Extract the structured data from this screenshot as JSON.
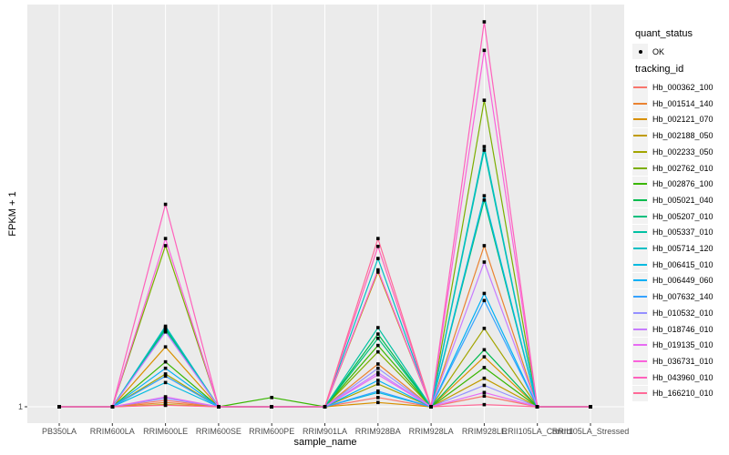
{
  "figure": {
    "background": "#FFFFFF",
    "panel_background": "#EBEBEB",
    "gridline_color": "#FFFFFF",
    "point_color": "#000000",
    "tick_color": "#333333",
    "axis_text_color": "#4D4D4D"
  },
  "legend": {
    "quant_status_title": "quant_status",
    "quant_status_item": "OK",
    "tracking_id_title": "tracking_id"
  },
  "chart_data": {
    "type": "line",
    "title": "",
    "xlabel": "sample_name",
    "ylabel": "FPKM + 1",
    "legend_position": "right",
    "grid": "vertical major gridlines per sample, horizontal gridline at y=1",
    "y_axis": {
      "tick_labels": [
        "1"
      ],
      "baseline_value": 1,
      "max_value": 55,
      "scale": "linear"
    },
    "quant_status": "OK",
    "categories": [
      "PB350LA",
      "RRIM600LA",
      "RRIM600LE",
      "RRIM600SE",
      "RRIM600PE",
      "RRIM901LA",
      "RRIM928BA",
      "RRIM928LA",
      "RRIM928LE",
      "RRII105LA_Control",
      "RRII105LA_Stressed"
    ],
    "series": [
      {
        "name": "Hb_000362_100",
        "color": "#F8766D",
        "values": [
          1,
          1,
          1.9,
          1,
          1,
          1,
          2.3,
          1,
          2.5,
          1,
          1
        ]
      },
      {
        "name": "Hb_001514_140",
        "color": "#EA8331",
        "values": [
          1,
          1,
          1.6,
          1,
          1,
          1,
          7.0,
          1,
          23.6,
          1,
          1
        ]
      },
      {
        "name": "Hb_002121_070",
        "color": "#D89000",
        "values": [
          1,
          1,
          9.4,
          1,
          1,
          1,
          1.6,
          1,
          8.0,
          1,
          1
        ]
      },
      {
        "name": "Hb_002188_050",
        "color": "#C09B00",
        "values": [
          1,
          1,
          1.3,
          1,
          1,
          1,
          19.9,
          1,
          5.0,
          1,
          1
        ]
      },
      {
        "name": "Hb_002233_050",
        "color": "#A3A500",
        "values": [
          1,
          1,
          5.6,
          1,
          1,
          1,
          4.2,
          1,
          12.0,
          1,
          1
        ]
      },
      {
        "name": "Hb_002762_010",
        "color": "#7CAE00",
        "values": [
          1,
          1,
          23.6,
          1,
          1,
          1,
          8.7,
          1,
          44.0,
          1,
          1
        ]
      },
      {
        "name": "Hb_002876_100",
        "color": "#39B600",
        "values": [
          1,
          1,
          7.3,
          1,
          2.3,
          1,
          9.6,
          1,
          6.5,
          1,
          1
        ]
      },
      {
        "name": "Hb_005021_040",
        "color": "#00BB4E",
        "values": [
          1,
          1,
          11.9,
          1,
          1,
          1,
          11.2,
          1,
          9.0,
          1,
          1
        ]
      },
      {
        "name": "Hb_005207_010",
        "color": "#00BF7D",
        "values": [
          1,
          1,
          12.1,
          1,
          1,
          1,
          10.6,
          1,
          30.0,
          1,
          1
        ]
      },
      {
        "name": "Hb_005337_010",
        "color": "#00C1A3",
        "values": [
          1,
          1,
          11.7,
          1,
          1,
          1,
          12.1,
          1,
          37.0,
          1,
          1
        ]
      },
      {
        "name": "Hb_005714_120",
        "color": "#00BFC4",
        "values": [
          1,
          1,
          12.3,
          1,
          1,
          1,
          21.8,
          1,
          37.5,
          1,
          1
        ]
      },
      {
        "name": "Hb_006415_010",
        "color": "#00BAE0",
        "values": [
          1,
          1,
          4.4,
          1,
          1,
          1,
          3.0,
          1,
          30.6,
          1,
          1
        ]
      },
      {
        "name": "Hb_006449_060",
        "color": "#00B0F6",
        "values": [
          1,
          1,
          6.4,
          1,
          1,
          1,
          4.7,
          1,
          16.9,
          1,
          1
        ]
      },
      {
        "name": "Hb_007632_140",
        "color": "#35A2FF",
        "values": [
          1,
          1,
          5.3,
          1,
          1,
          1,
          3.2,
          1,
          15.9,
          1,
          1
        ]
      },
      {
        "name": "Hb_010532_010",
        "color": "#9590FF",
        "values": [
          1,
          1,
          2.2,
          1,
          1,
          1,
          6.4,
          1,
          4.0,
          1,
          1
        ]
      },
      {
        "name": "Hb_018746_010",
        "color": "#C77CFF",
        "values": [
          1,
          1,
          11.5,
          1,
          1,
          1,
          5.8,
          1,
          21.3,
          1,
          1
        ]
      },
      {
        "name": "Hb_019135_010",
        "color": "#E76BF3",
        "values": [
          1,
          1,
          2.4,
          1,
          1,
          1,
          5.5,
          1,
          3.0,
          1,
          1
        ]
      },
      {
        "name": "Hb_036731_010",
        "color": "#FA62DB",
        "values": [
          1,
          1,
          24.6,
          1,
          1,
          1,
          20.2,
          1,
          51.0,
          1,
          1
        ]
      },
      {
        "name": "Hb_043960_010",
        "color": "#FF62BC",
        "values": [
          1,
          1,
          29.4,
          1,
          1,
          1,
          23.5,
          1,
          55.0,
          1,
          1
        ]
      },
      {
        "name": "Hb_166210_010",
        "color": "#FF6A98",
        "values": [
          1,
          1,
          1.2,
          1,
          1,
          1,
          24.6,
          1,
          1.3,
          1,
          1
        ]
      }
    ]
  }
}
